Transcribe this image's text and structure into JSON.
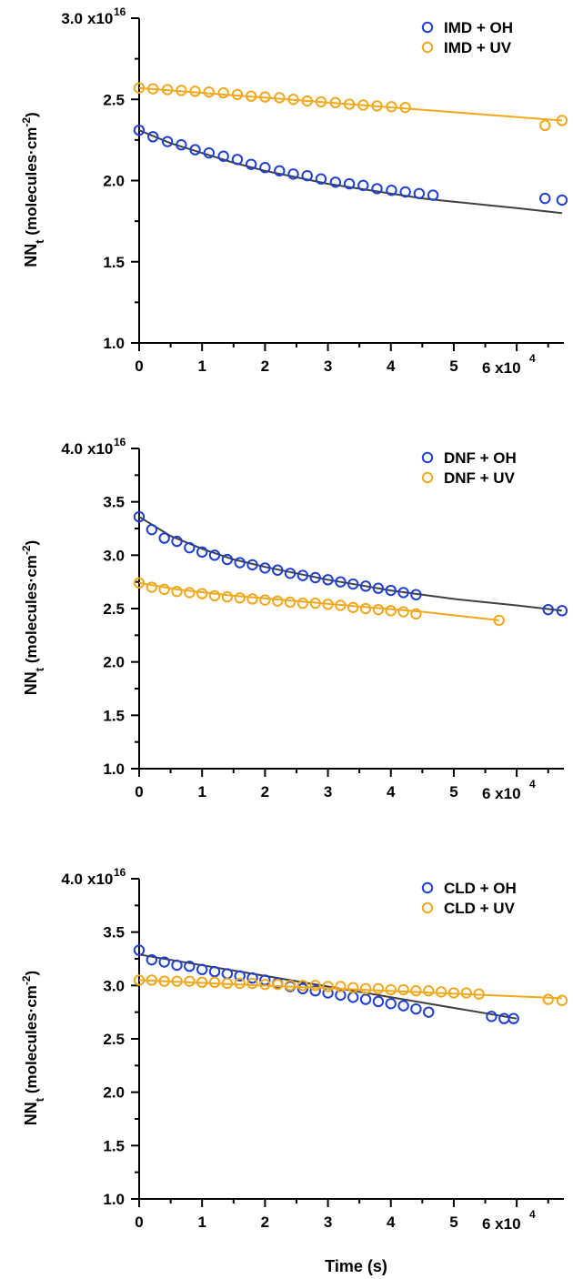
{
  "colors": {
    "oh": "#1f3fd1",
    "uv": "#f0a81e",
    "fit_oh": "#404040",
    "fit_uv": "#f0a81e"
  },
  "chart_data": [
    {
      "type": "scatter",
      "ylim": [
        1.0,
        3.0
      ],
      "xlim": [
        0,
        6.75
      ],
      "y_multiplier_label": "x10",
      "y_multiplier_exp": "16",
      "x_multiplier_label": "6 x10",
      "x_multiplier_exp": "4",
      "ylabel": "NN",
      "ylabel_sub": "t",
      "ylabel_units": " (molecules·cm",
      "ylabel_units_exp": "-2",
      "ylabel_close": ")",
      "yticks": [
        1.0,
        1.5,
        2.0,
        2.5,
        3.0
      ],
      "ytick_labels": [
        "1.0",
        "1.5",
        "2.0",
        "2.5",
        "3.0"
      ],
      "xticks": [
        0,
        1,
        2,
        3,
        4,
        5
      ],
      "xtick_labels": [
        "0",
        "1",
        "2",
        "3",
        "4",
        "5"
      ],
      "legend_position": "top-right",
      "series": [
        {
          "name": "IMD + OH",
          "color_key": "oh",
          "x": [
            0,
            0.22,
            0.45,
            0.67,
            0.89,
            1.11,
            1.34,
            1.56,
            1.78,
            2.0,
            2.23,
            2.45,
            2.67,
            2.89,
            3.12,
            3.34,
            3.56,
            3.78,
            4.01,
            4.23,
            4.45,
            4.67,
            6.45,
            6.72
          ],
          "y": [
            2.31,
            2.27,
            2.24,
            2.22,
            2.19,
            2.17,
            2.15,
            2.13,
            2.1,
            2.08,
            2.06,
            2.04,
            2.03,
            2.01,
            1.99,
            1.98,
            1.97,
            1.95,
            1.94,
            1.93,
            1.92,
            1.91,
            1.89,
            1.88
          ],
          "fit_x": [
            0,
            0.5,
            1,
            1.5,
            2,
            2.5,
            3,
            3.5,
            4,
            4.5,
            5,
            5.5,
            6,
            6.72
          ],
          "fit_y": [
            2.31,
            2.23,
            2.17,
            2.11,
            2.06,
            2.02,
            1.98,
            1.95,
            1.92,
            1.89,
            1.87,
            1.85,
            1.83,
            1.8
          ]
        },
        {
          "name": "IMD + UV",
          "color_key": "uv",
          "x": [
            0,
            0.22,
            0.45,
            0.67,
            0.89,
            1.11,
            1.34,
            1.56,
            1.78,
            2.0,
            2.23,
            2.45,
            2.67,
            2.89,
            3.12,
            3.34,
            3.56,
            3.78,
            4.01,
            4.23,
            6.45,
            6.72
          ],
          "y": [
            2.57,
            2.565,
            2.56,
            2.555,
            2.55,
            2.545,
            2.54,
            2.53,
            2.52,
            2.515,
            2.51,
            2.5,
            2.49,
            2.485,
            2.48,
            2.47,
            2.465,
            2.46,
            2.455,
            2.45,
            2.34,
            2.37
          ],
          "fit_x": [
            0,
            6.72
          ],
          "fit_y": [
            2.57,
            2.37
          ]
        }
      ]
    },
    {
      "type": "scatter",
      "ylim": [
        1.0,
        4.0
      ],
      "xlim": [
        0,
        6.75
      ],
      "y_multiplier_label": "x10",
      "y_multiplier_exp": "16",
      "x_multiplier_label": "6 x10",
      "x_multiplier_exp": "4",
      "ylabel": "NN",
      "ylabel_sub": "t",
      "ylabel_units": " (molecules·cm",
      "ylabel_units_exp": "-2",
      "ylabel_close": ")",
      "yticks": [
        1.0,
        1.5,
        2.0,
        2.5,
        3.0,
        3.5,
        4.0
      ],
      "ytick_labels": [
        "1.0",
        "1.5",
        "2.0",
        "2.5",
        "3.0",
        "3.5",
        "4.0"
      ],
      "xticks": [
        0,
        1,
        2,
        3,
        4,
        5
      ],
      "xtick_labels": [
        "0",
        "1",
        "2",
        "3",
        "4",
        "5"
      ],
      "legend_position": "top-right",
      "series": [
        {
          "name": "DNF + OH",
          "color_key": "oh",
          "x": [
            0,
            0.2,
            0.4,
            0.6,
            0.8,
            1.0,
            1.2,
            1.4,
            1.6,
            1.8,
            2.0,
            2.2,
            2.4,
            2.6,
            2.8,
            3.0,
            3.2,
            3.4,
            3.6,
            3.8,
            4.0,
            4.2,
            4.4,
            6.5,
            6.72
          ],
          "y": [
            3.36,
            3.24,
            3.16,
            3.13,
            3.07,
            3.03,
            3.0,
            2.96,
            2.93,
            2.91,
            2.88,
            2.86,
            2.83,
            2.81,
            2.79,
            2.77,
            2.75,
            2.73,
            2.71,
            2.69,
            2.67,
            2.65,
            2.63,
            2.49,
            2.48
          ],
          "fit_x": [
            0,
            0.5,
            1,
            1.5,
            2,
            2.5,
            3,
            3.5,
            4,
            4.5,
            5,
            5.5,
            6,
            6.72
          ],
          "fit_y": [
            3.36,
            3.18,
            3.06,
            2.96,
            2.89,
            2.83,
            2.77,
            2.72,
            2.67,
            2.63,
            2.59,
            2.56,
            2.53,
            2.48
          ]
        },
        {
          "name": "DNF + UV",
          "color_key": "uv",
          "x": [
            0,
            0.2,
            0.4,
            0.6,
            0.8,
            1.0,
            1.2,
            1.4,
            1.6,
            1.8,
            2.0,
            2.2,
            2.4,
            2.6,
            2.8,
            3.0,
            3.2,
            3.4,
            3.6,
            3.8,
            4.0,
            4.2,
            4.4,
            5.72
          ],
          "y": [
            2.74,
            2.7,
            2.68,
            2.66,
            2.65,
            2.64,
            2.62,
            2.61,
            2.6,
            2.59,
            2.58,
            2.57,
            2.56,
            2.55,
            2.55,
            2.54,
            2.53,
            2.51,
            2.5,
            2.49,
            2.48,
            2.47,
            2.45,
            2.39
          ],
          "fit_x": [
            0,
            0.6,
            1.5,
            2.5,
            3.5,
            4.5,
            5.72
          ],
          "fit_y": [
            2.74,
            2.68,
            2.62,
            2.57,
            2.52,
            2.47,
            2.39
          ]
        }
      ]
    },
    {
      "type": "scatter",
      "ylim": [
        1.0,
        4.0
      ],
      "xlim": [
        0,
        6.75
      ],
      "y_multiplier_label": "x10",
      "y_multiplier_exp": "16",
      "x_multiplier_label": "6 x10",
      "x_multiplier_exp": "4",
      "ylabel": "NN",
      "ylabel_sub": "t",
      "ylabel_units": " (molecules·cm",
      "ylabel_units_exp": "-2",
      "ylabel_close": ")",
      "xlabel": "Time (s)",
      "yticks": [
        1.0,
        1.5,
        2.0,
        2.5,
        3.0,
        3.5,
        4.0
      ],
      "ytick_labels": [
        "1.0",
        "1.5",
        "2.0",
        "2.5",
        "3.0",
        "3.5",
        "4.0"
      ],
      "xticks": [
        0,
        1,
        2,
        3,
        4,
        5
      ],
      "xtick_labels": [
        "0",
        "1",
        "2",
        "3",
        "4",
        "5"
      ],
      "legend_position": "top-right",
      "series": [
        {
          "name": "CLD + OH",
          "color_key": "oh",
          "x": [
            0,
            0.2,
            0.4,
            0.6,
            0.8,
            1.0,
            1.2,
            1.4,
            1.6,
            1.8,
            2.0,
            2.2,
            2.4,
            2.6,
            2.8,
            3.0,
            3.2,
            3.4,
            3.6,
            3.8,
            4.0,
            4.2,
            4.4,
            4.6,
            5.6,
            5.8,
            5.95
          ],
          "y": [
            3.33,
            3.24,
            3.22,
            3.19,
            3.18,
            3.15,
            3.13,
            3.11,
            3.09,
            3.07,
            3.05,
            3.02,
            2.99,
            2.97,
            2.95,
            2.93,
            2.91,
            2.89,
            2.87,
            2.85,
            2.83,
            2.81,
            2.78,
            2.75,
            2.71,
            2.69,
            2.69
          ],
          "fit_x": [
            0,
            6.0
          ],
          "fit_y": [
            3.29,
            2.69
          ]
        },
        {
          "name": "CLD + UV",
          "color_key": "uv",
          "x": [
            0,
            0.2,
            0.4,
            0.6,
            0.8,
            1.0,
            1.2,
            1.4,
            1.6,
            1.8,
            2.0,
            2.2,
            2.4,
            2.6,
            2.8,
            3.0,
            3.2,
            3.4,
            3.6,
            3.8,
            4.0,
            4.2,
            4.4,
            4.6,
            4.8,
            5.0,
            5.2,
            5.4,
            6.5,
            6.72
          ],
          "y": [
            3.05,
            3.05,
            3.04,
            3.04,
            3.04,
            3.03,
            3.03,
            3.02,
            3.02,
            3.02,
            3.01,
            3.01,
            3.0,
            3.0,
            3.0,
            2.99,
            2.99,
            2.98,
            2.97,
            2.97,
            2.96,
            2.96,
            2.95,
            2.95,
            2.94,
            2.93,
            2.93,
            2.92,
            2.87,
            2.86
          ],
          "fit_x": [
            0,
            6.72
          ],
          "fit_y": [
            3.05,
            2.88
          ]
        }
      ]
    }
  ]
}
